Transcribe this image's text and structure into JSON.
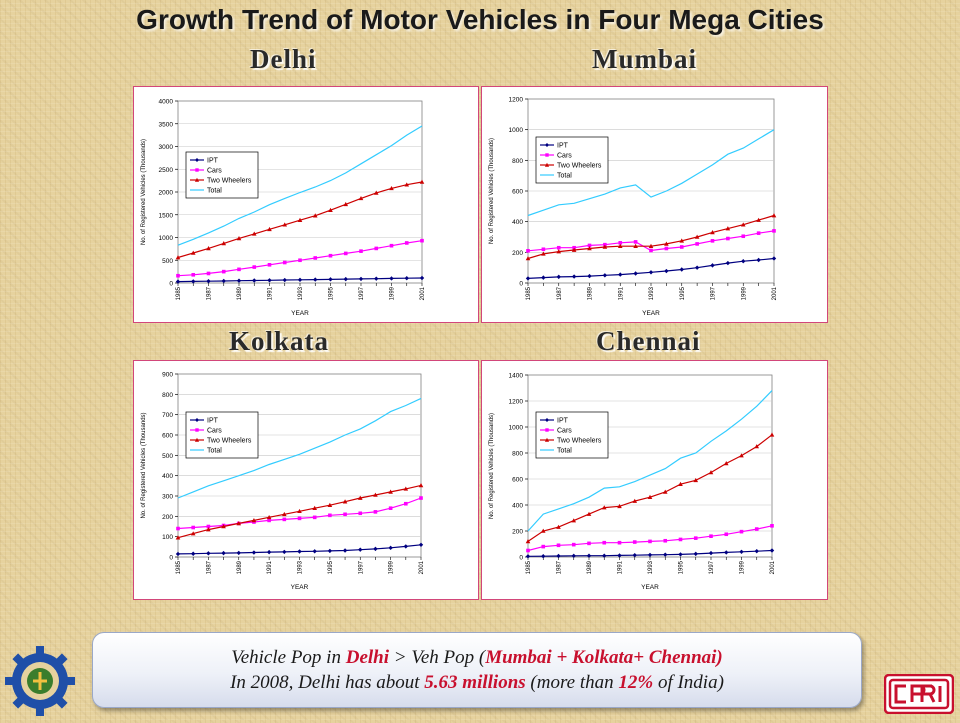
{
  "title": "Growth Trend of Motor Vehicles in Four Mega Cities",
  "colors": {
    "IPT": "#000080",
    "Cars": "#ff00ff",
    "Two Wheelers": "#cc0000",
    "Total": "#33ccff",
    "accent": "#d2467a"
  },
  "legend_labels": [
    "IPT",
    "Cars",
    "Two Wheelers",
    "Total"
  ],
  "note": {
    "line1_a": "Vehicle Pop in ",
    "line1_b": "Delhi",
    "line1_c": " > Veh Pop (",
    "line1_d": "Mumbai + Kolkata+ Chennai)",
    "line2_a": "In 2008, Delhi has about ",
    "line2_b": "5.63 millions",
    "line2_c": " (more than ",
    "line2_d": "12%",
    "line2_e": " of India)"
  },
  "chart_data": [
    {
      "city": "Delhi",
      "type": "line",
      "xlabel": "YEAR",
      "ylabel": "No. of Registered Vehicles (Thousands)",
      "x": [
        1985,
        1986,
        1987,
        1988,
        1989,
        1990,
        1991,
        1992,
        1993,
        1994,
        1995,
        1996,
        1997,
        1998,
        1999,
        2000,
        2001
      ],
      "x_tick_labels": [
        "1985",
        "1987",
        "1989",
        "1991",
        "1993",
        "1995",
        "1997",
        "1999",
        "2001"
      ],
      "ylim": [
        0,
        4000
      ],
      "y_step": 500,
      "y_ticks": [
        "0",
        "500",
        "1000",
        "1500",
        "2000",
        "2500",
        "3000",
        "3500",
        "4000"
      ],
      "series": [
        {
          "name": "IPT",
          "values": [
            30,
            35,
            40,
            45,
            50,
            55,
            60,
            65,
            70,
            75,
            80,
            85,
            90,
            95,
            100,
            105,
            110
          ]
        },
        {
          "name": "Cars",
          "values": [
            160,
            180,
            210,
            250,
            300,
            350,
            400,
            450,
            500,
            550,
            600,
            650,
            700,
            760,
            820,
            880,
            930
          ]
        },
        {
          "name": "Two Wheelers",
          "values": [
            560,
            660,
            760,
            870,
            980,
            1080,
            1180,
            1280,
            1380,
            1480,
            1600,
            1730,
            1860,
            1980,
            2080,
            2160,
            2220
          ]
        },
        {
          "name": "Total",
          "values": [
            830,
            960,
            1100,
            1250,
            1420,
            1560,
            1720,
            1860,
            1990,
            2110,
            2250,
            2420,
            2620,
            2820,
            3020,
            3250,
            3450
          ]
        }
      ]
    },
    {
      "city": "Mumbai",
      "type": "line",
      "xlabel": "YEAR",
      "ylabel": "No. of Registered Vehicles (Thousands)",
      "x": [
        1985,
        1986,
        1987,
        1988,
        1989,
        1990,
        1991,
        1992,
        1993,
        1994,
        1995,
        1996,
        1997,
        1998,
        1999,
        2000,
        2001
      ],
      "x_tick_labels": [
        "1985",
        "1987",
        "1989",
        "1991",
        "1993",
        "1995",
        "1997",
        "1999",
        "2001"
      ],
      "ylim": [
        0,
        1200
      ],
      "y_step": 200,
      "y_ticks": [
        "0",
        "200",
        "400",
        "600",
        "800",
        "1000",
        "1200"
      ],
      "series": [
        {
          "name": "IPT",
          "values": [
            30,
            35,
            40,
            42,
            45,
            50,
            55,
            62,
            70,
            78,
            88,
            100,
            115,
            130,
            142,
            150,
            160
          ]
        },
        {
          "name": "Cars",
          "values": [
            210,
            220,
            230,
            230,
            245,
            250,
            262,
            268,
            212,
            225,
            235,
            255,
            275,
            290,
            305,
            325,
            340
          ]
        },
        {
          "name": "Two Wheelers",
          "values": [
            160,
            190,
            205,
            215,
            225,
            235,
            240,
            240,
            240,
            255,
            275,
            300,
            330,
            355,
            380,
            410,
            440
          ]
        },
        {
          "name": "Total",
          "values": [
            440,
            475,
            510,
            520,
            550,
            580,
            620,
            640,
            560,
            600,
            650,
            710,
            770,
            840,
            880,
            940,
            1000
          ]
        }
      ]
    },
    {
      "city": "Kolkata",
      "type": "line",
      "xlabel": "YEAR",
      "ylabel": "No. of Registered Vehicles (Thousands)",
      "x": [
        1985,
        1986,
        1987,
        1988,
        1989,
        1990,
        1991,
        1992,
        1993,
        1994,
        1995,
        1996,
        1997,
        1998,
        1999,
        2000,
        2001
      ],
      "x_tick_labels": [
        "1985",
        "1987",
        "1989",
        "1991",
        "1993",
        "1995",
        "1997",
        "1999",
        "2001"
      ],
      "ylim": [
        0,
        900
      ],
      "y_step": 100,
      "y_ticks": [
        "0",
        "100",
        "200",
        "300",
        "400",
        "500",
        "600",
        "700",
        "800",
        "900"
      ],
      "series": [
        {
          "name": "IPT",
          "values": [
            15,
            16,
            18,
            19,
            20,
            22,
            24,
            25,
            27,
            28,
            30,
            32,
            36,
            40,
            45,
            52,
            60
          ]
        },
        {
          "name": "Cars",
          "values": [
            140,
            145,
            150,
            155,
            165,
            172,
            180,
            185,
            190,
            195,
            205,
            210,
            215,
            222,
            240,
            262,
            290
          ]
        },
        {
          "name": "Two Wheelers",
          "values": [
            95,
            115,
            135,
            150,
            165,
            180,
            195,
            210,
            225,
            240,
            255,
            272,
            290,
            305,
            320,
            335,
            352
          ]
        },
        {
          "name": "Total",
          "values": [
            290,
            320,
            350,
            375,
            400,
            425,
            455,
            480,
            505,
            535,
            565,
            600,
            630,
            670,
            715,
            745,
            780
          ]
        }
      ]
    },
    {
      "city": "Chennai",
      "type": "line",
      "xlabel": "YEAR",
      "ylabel": "No. of Registered Vehicles (Thousands)",
      "x": [
        1985,
        1986,
        1987,
        1988,
        1989,
        1990,
        1991,
        1992,
        1993,
        1994,
        1995,
        1996,
        1997,
        1998,
        1999,
        2000,
        2001
      ],
      "x_tick_labels": [
        "1985",
        "1987",
        "1989",
        "1991",
        "1993",
        "1995",
        "1997",
        "1999",
        "2001"
      ],
      "ylim": [
        0,
        1400
      ],
      "y_step": 200,
      "y_ticks": [
        "0",
        "200",
        "400",
        "600",
        "800",
        "1000",
        "1200",
        "1400"
      ],
      "series": [
        {
          "name": "IPT",
          "values": [
            5,
            6,
            8,
            9,
            10,
            10,
            12,
            14,
            16,
            18,
            20,
            24,
            30,
            35,
            40,
            45,
            50
          ]
        },
        {
          "name": "Cars",
          "values": [
            50,
            80,
            90,
            95,
            105,
            110,
            110,
            115,
            120,
            125,
            135,
            145,
            160,
            175,
            195,
            215,
            240
          ]
        },
        {
          "name": "Two Wheelers",
          "values": [
            120,
            200,
            230,
            280,
            330,
            380,
            390,
            430,
            460,
            500,
            560,
            590,
            650,
            720,
            780,
            850,
            940
          ]
        },
        {
          "name": "Total",
          "values": [
            200,
            330,
            370,
            410,
            460,
            530,
            540,
            580,
            630,
            680,
            760,
            800,
            890,
            970,
            1060,
            1160,
            1280
          ]
        }
      ]
    }
  ]
}
